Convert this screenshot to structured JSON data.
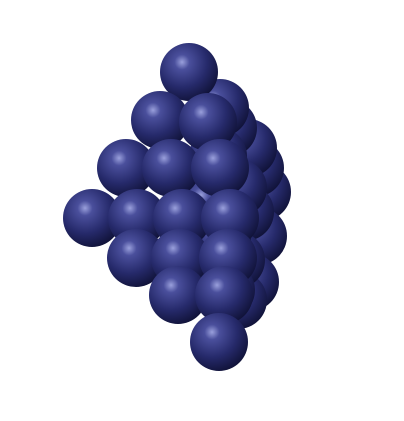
{
  "scene": {
    "subject": "sphere-cluster",
    "sphere_count": 33,
    "colors": {
      "background": "#ffffff",
      "sphere_highlight": "#9aa0dc",
      "sphere_light": "#4a4f9c",
      "sphere_mid": "#262a6b",
      "sphere_dark": "#0f1136"
    }
  }
}
